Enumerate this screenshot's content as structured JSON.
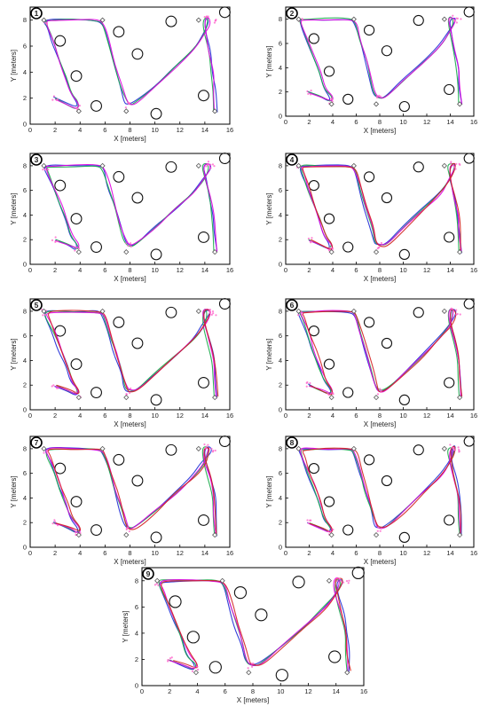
{
  "figure": {
    "colors": {
      "axis": "#000000",
      "blue": "#1f2bd6",
      "green": "#18a84a",
      "magenta": "#e000e0",
      "pink": "#ff66cc",
      "red": "#d42020",
      "obstacle": "#111111",
      "waypoint": "#555555"
    },
    "icons": {
      "waypoint": "diamond-marker-icon",
      "obstacle": "circle-obstacle-icon",
      "panel_badge": "numbered-circle-badge-icon"
    }
  },
  "chart_data": [
    {
      "panel": "1",
      "type": "line",
      "xlabel": "X [meters]",
      "ylabel": "Y [meters]",
      "xlim": [
        0,
        16
      ],
      "ylim": [
        0,
        9
      ],
      "xticks": [
        "0",
        "2",
        "4",
        "6",
        "8",
        "10",
        "12",
        "14",
        "16"
      ],
      "yticks": [
        "0",
        "2",
        "4",
        "6",
        "8"
      ],
      "series_colors": [
        "blue",
        "green",
        "magenta"
      ],
      "variant": 0
    },
    {
      "panel": "2",
      "type": "line",
      "xlabel": "X [meters]",
      "ylabel": "Y [meters]",
      "xlim": [
        0,
        16
      ],
      "ylim": [
        0,
        9
      ],
      "xticks": [
        "0",
        "2",
        "4",
        "6",
        "8",
        "10",
        "12",
        "14",
        "16"
      ],
      "yticks": [
        "0",
        "2",
        "4",
        "6",
        "8"
      ],
      "series_colors": [
        "blue",
        "green",
        "magenta"
      ],
      "variant": 1
    },
    {
      "panel": "3",
      "type": "line",
      "xlabel": "X [meters]",
      "ylabel": "Y [meters]",
      "xlim": [
        0,
        16
      ],
      "ylim": [
        0,
        9
      ],
      "xticks": [
        "0",
        "2",
        "4",
        "6",
        "8",
        "10",
        "12",
        "14",
        "16"
      ],
      "yticks": [
        "0",
        "2",
        "4",
        "6",
        "8"
      ],
      "series_colors": [
        "blue",
        "green",
        "magenta"
      ],
      "variant": 2
    },
    {
      "panel": "4",
      "type": "line",
      "xlabel": "X [meters]",
      "ylabel": "Y [meters]",
      "xlim": [
        0,
        16
      ],
      "ylim": [
        0,
        9
      ],
      "xticks": [
        "0",
        "2",
        "4",
        "6",
        "8",
        "10",
        "12",
        "14",
        "16"
      ],
      "yticks": [
        "0",
        "2",
        "4",
        "6",
        "8"
      ],
      "series_colors": [
        "blue",
        "green",
        "magenta",
        "red"
      ],
      "variant": 3
    },
    {
      "panel": "5",
      "type": "line",
      "xlabel": "X [meters]",
      "ylabel": "Y [meters]",
      "xlim": [
        0,
        16
      ],
      "ylim": [
        0,
        9
      ],
      "xticks": [
        "0",
        "2",
        "4",
        "6",
        "8",
        "10",
        "12",
        "14",
        "16"
      ],
      "yticks": [
        "0",
        "2",
        "4",
        "6",
        "8"
      ],
      "series_colors": [
        "blue",
        "green",
        "magenta",
        "red"
      ],
      "variant": 4
    },
    {
      "panel": "6",
      "type": "line",
      "xlabel": "X [meters]",
      "ylabel": "Y [meters]",
      "xlim": [
        0,
        16
      ],
      "ylim": [
        0,
        9
      ],
      "xticks": [
        "0",
        "2",
        "4",
        "6",
        "8",
        "10",
        "12",
        "14",
        "16"
      ],
      "yticks": [
        "0",
        "2",
        "4",
        "6",
        "8"
      ],
      "series_colors": [
        "blue",
        "green",
        "magenta",
        "red"
      ],
      "variant": 5
    },
    {
      "panel": "7",
      "type": "line",
      "xlabel": "X [meters]",
      "ylabel": "Y [meters]",
      "xlim": [
        0,
        16
      ],
      "ylim": [
        0,
        9
      ],
      "xticks": [
        "0",
        "2",
        "4",
        "6",
        "8",
        "10",
        "12",
        "14",
        "16"
      ],
      "yticks": [
        "0",
        "2",
        "4",
        "6",
        "8"
      ],
      "series_colors": [
        "blue",
        "green",
        "magenta",
        "red"
      ],
      "variant": 6
    },
    {
      "panel": "8",
      "type": "line",
      "xlabel": "X [meters]",
      "ylabel": "Y [meters]",
      "xlim": [
        0,
        16
      ],
      "ylim": [
        0,
        9
      ],
      "xticks": [
        "0",
        "2",
        "4",
        "6",
        "8",
        "10",
        "12",
        "14",
        "16"
      ],
      "yticks": [
        "0",
        "2",
        "4",
        "6",
        "8"
      ],
      "series_colors": [
        "blue",
        "green",
        "magenta",
        "red"
      ],
      "variant": 7
    },
    {
      "panel": "9",
      "type": "line",
      "xlabel": "X [meters]",
      "ylabel": "Y [meters]",
      "xlim": [
        0,
        16
      ],
      "ylim": [
        0,
        9
      ],
      "xticks": [
        "0",
        "2",
        "4",
        "6",
        "8",
        "10",
        "12",
        "14",
        "16"
      ],
      "yticks": [
        "0",
        "2",
        "4",
        "6",
        "8"
      ],
      "series_colors": [
        "blue",
        "green",
        "magenta",
        "red"
      ],
      "variant": 8
    }
  ],
  "scene": {
    "obstacles": [
      [
        2.4,
        6.4
      ],
      [
        3.7,
        3.7
      ],
      [
        5.3,
        1.4
      ],
      [
        7.1,
        7.1
      ],
      [
        8.6,
        5.4
      ],
      [
        10.1,
        0.8
      ],
      [
        11.3,
        7.9
      ],
      [
        13.9,
        2.2
      ],
      [
        15.6,
        8.6
      ]
    ],
    "waypoints": [
      [
        1.1,
        8.0
      ],
      [
        5.8,
        8.0
      ],
      [
        3.9,
        1.0
      ],
      [
        7.7,
        1.0
      ],
      [
        13.5,
        8.0
      ],
      [
        14.8,
        1.0
      ]
    ],
    "reference_path": [
      [
        2.0,
        2.0
      ],
      [
        3.0,
        1.6
      ],
      [
        3.8,
        1.2
      ],
      [
        3.9,
        1.6
      ],
      [
        3.3,
        2.3
      ],
      [
        2.9,
        3.5
      ],
      [
        2.4,
        4.8
      ],
      [
        1.9,
        6.2
      ],
      [
        1.4,
        7.4
      ],
      [
        1.2,
        7.9
      ],
      [
        1.6,
        8.0
      ],
      [
        3.5,
        8.0
      ],
      [
        5.5,
        8.0
      ],
      [
        5.9,
        7.7
      ],
      [
        6.3,
        6.3
      ],
      [
        6.8,
        4.6
      ],
      [
        7.3,
        3.0
      ],
      [
        7.6,
        1.8
      ],
      [
        7.9,
        1.5
      ],
      [
        8.5,
        1.6
      ],
      [
        10.0,
        2.9
      ],
      [
        11.6,
        4.4
      ],
      [
        13.1,
        5.8
      ],
      [
        13.9,
        6.9
      ],
      [
        14.3,
        7.8
      ],
      [
        14.2,
        8.2
      ],
      [
        13.8,
        8.0
      ],
      [
        13.9,
        7.0
      ],
      [
        14.3,
        5.5
      ],
      [
        14.6,
        4.0
      ],
      [
        14.7,
        2.6
      ],
      [
        14.8,
        1.0
      ]
    ]
  }
}
